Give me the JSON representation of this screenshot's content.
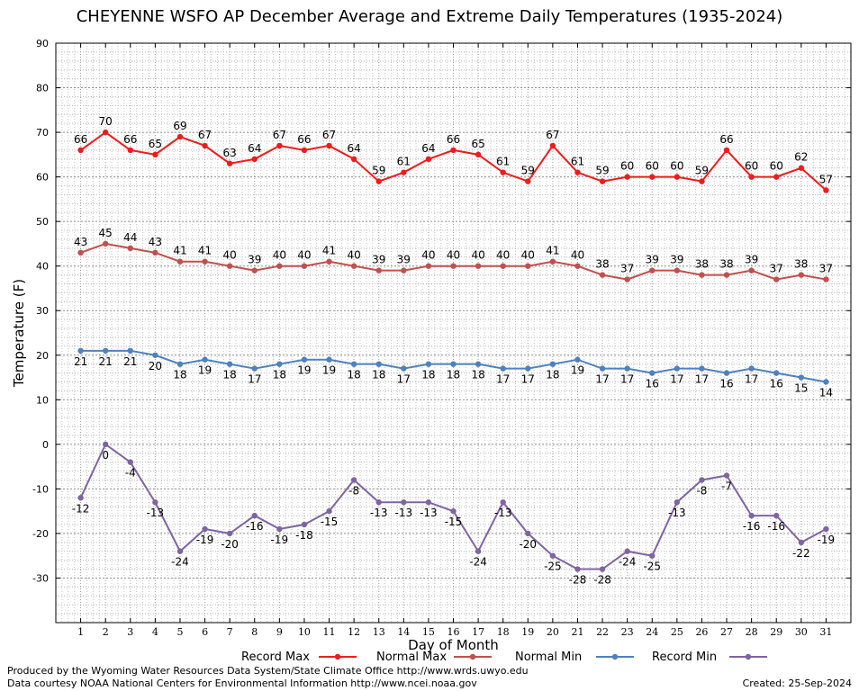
{
  "chart_data": {
    "type": "line",
    "title": "CHEYENNE WSFO AP December Average and Extreme Daily Temperatures (1935-2024)",
    "xlabel": "Day of Month",
    "ylabel": "Temperature (F)",
    "ylim": [
      -40,
      90
    ],
    "yticks": [
      90,
      80,
      70,
      60,
      50,
      40,
      30,
      20,
      10,
      0,
      -10,
      -20,
      -30
    ],
    "grid": true,
    "legend_position": "bottom",
    "x": [
      1,
      2,
      3,
      4,
      5,
      6,
      7,
      8,
      9,
      10,
      11,
      12,
      13,
      14,
      15,
      16,
      17,
      18,
      19,
      20,
      21,
      22,
      23,
      24,
      25,
      26,
      27,
      28,
      29,
      30,
      31
    ],
    "series": [
      {
        "name": "Record Max",
        "color": "#ee1c1c",
        "values": [
          66,
          70,
          66,
          65,
          69,
          67,
          63,
          64,
          67,
          66,
          67,
          64,
          59,
          61,
          64,
          66,
          65,
          61,
          59,
          67,
          61,
          59,
          60,
          60,
          60,
          59,
          66,
          60,
          60,
          62,
          57
        ]
      },
      {
        "name": "Normal Max",
        "color": "#c0504d",
        "values": [
          43,
          45,
          44,
          43,
          41,
          41,
          40,
          39,
          40,
          40,
          41,
          40,
          39,
          39,
          40,
          40,
          40,
          40,
          40,
          41,
          40,
          38,
          37,
          39,
          39,
          38,
          38,
          39,
          37,
          38,
          37
        ]
      },
      {
        "name": "Normal Min",
        "color": "#4f81bd",
        "values": [
          21,
          21,
          21,
          20,
          18,
          19,
          18,
          17,
          18,
          19,
          19,
          18,
          18,
          17,
          18,
          18,
          18,
          17,
          17,
          18,
          19,
          17,
          17,
          16,
          17,
          17,
          16,
          17,
          16,
          15,
          14
        ]
      },
      {
        "name": "Record Min",
        "color": "#8064a2",
        "values": [
          -12,
          0,
          -4,
          -13,
          -24,
          -19,
          -20,
          -16,
          -19,
          -18,
          -15,
          -8,
          -13,
          -13,
          -13,
          -15,
          -24,
          -13,
          -20,
          -25,
          -28,
          -28,
          -24,
          -25,
          -13,
          -8,
          -7,
          -16,
          -16,
          -22,
          -19
        ]
      }
    ]
  },
  "footer": {
    "credit_line1": "Produced by the Wyoming Water Resources Data System/State Climate Office http://www.wrds.uwyo.edu",
    "credit_line2": "Data courtesy NOAA National Centers for Environmental Information http://www.ncei.noaa.gov",
    "created": "Created:  25-Sep-2024"
  }
}
